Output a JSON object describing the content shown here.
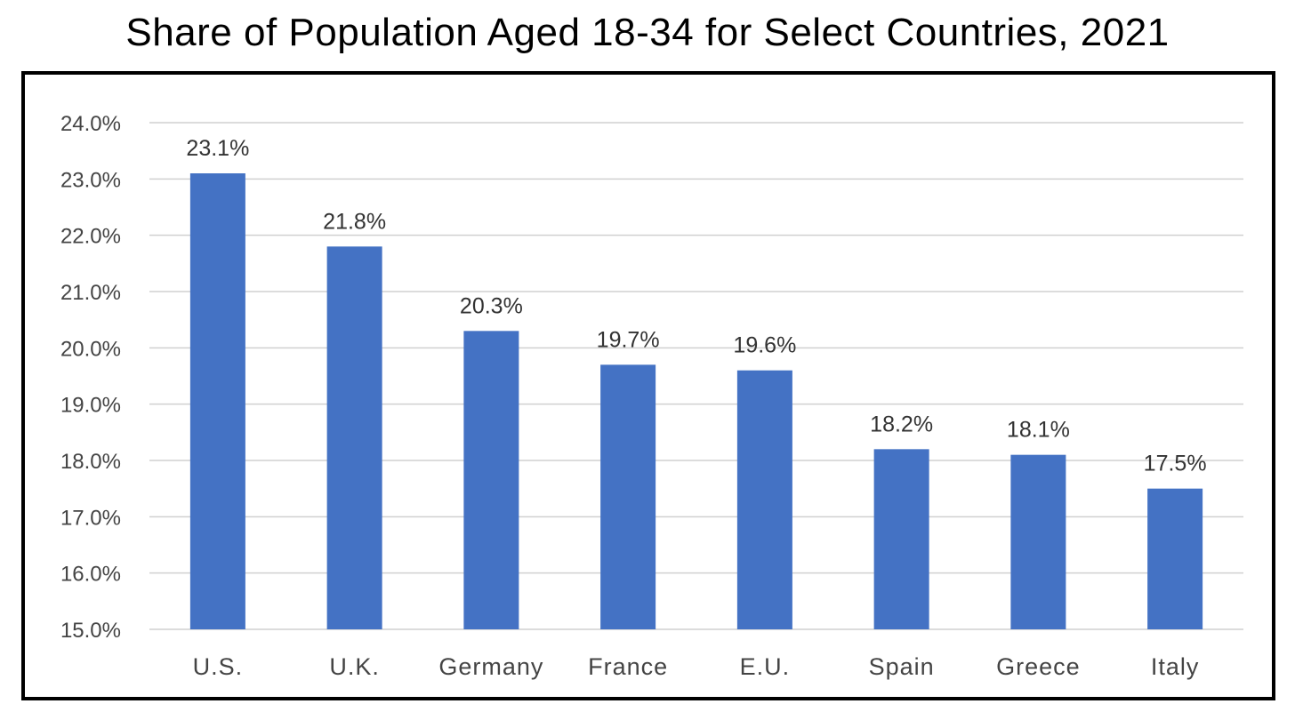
{
  "chart_data": {
    "type": "bar",
    "title": "Share of Population Aged 18-34 for Select Countries, 2021",
    "xlabel": "",
    "ylabel": "",
    "categories": [
      "U.S.",
      "U.K.",
      "Germany",
      "France",
      "E.U.",
      "Spain",
      "Greece",
      "Italy"
    ],
    "values": [
      23.1,
      21.8,
      20.3,
      19.7,
      19.6,
      18.2,
      18.1,
      17.5
    ],
    "data_labels": [
      "23.1%",
      "21.8%",
      "20.3%",
      "19.7%",
      "19.6%",
      "18.2%",
      "18.1%",
      "17.5%"
    ],
    "ylim": [
      15.0,
      24.0
    ],
    "y_ticks": [
      "15.0%",
      "16.0%",
      "17.0%",
      "18.0%",
      "19.0%",
      "20.0%",
      "21.0%",
      "22.0%",
      "23.0%",
      "24.0%"
    ],
    "grid": true,
    "legend": "none",
    "bar_color": "#4472c4",
    "grid_color": "#d0d0d0"
  }
}
